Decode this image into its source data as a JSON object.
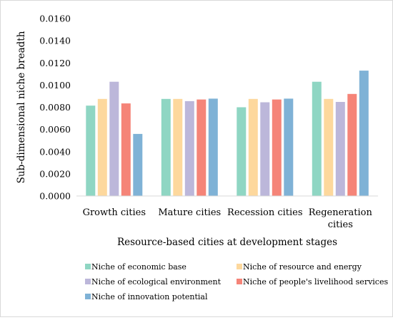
{
  "chart_data": {
    "type": "bar",
    "title": "",
    "xlabel": "Resource-based cities at development stages",
    "ylabel": "Sub-dimensional niche breadth",
    "ylim": [
      0,
      0.016
    ],
    "yticks": [
      "0.0000",
      "0.0020",
      "0.0040",
      "0.0060",
      "0.0080",
      "0.0100",
      "0.0120",
      "0.0140",
      "0.0160"
    ],
    "grid": false,
    "legend_position": "bottom",
    "categories": [
      [
        "Growth cities"
      ],
      [
        "Mature cities"
      ],
      [
        "Recession cities"
      ],
      [
        "Regeneration",
        "cities"
      ]
    ],
    "series": [
      {
        "name": "Niche of economic base",
        "color": "#8fd6c3",
        "values": [
          0.00815,
          0.00875,
          0.008,
          0.0103
        ]
      },
      {
        "name": "Niche of resource and energy",
        "color": "#fdd89d",
        "values": [
          0.00875,
          0.00875,
          0.00875,
          0.00875
        ]
      },
      {
        "name": "Niche of ecological environment",
        "color": "#bcb7da",
        "values": [
          0.0103,
          0.00855,
          0.00845,
          0.00848
        ]
      },
      {
        "name": "Niche of people's livelihood services",
        "color": "#f58478",
        "values": [
          0.00835,
          0.0087,
          0.0087,
          0.0092
        ]
      },
      {
        "name": "Niche of  innovation potential",
        "color": "#7fb2d6",
        "values": [
          0.0056,
          0.00878,
          0.00878,
          0.0113
        ]
      }
    ]
  }
}
